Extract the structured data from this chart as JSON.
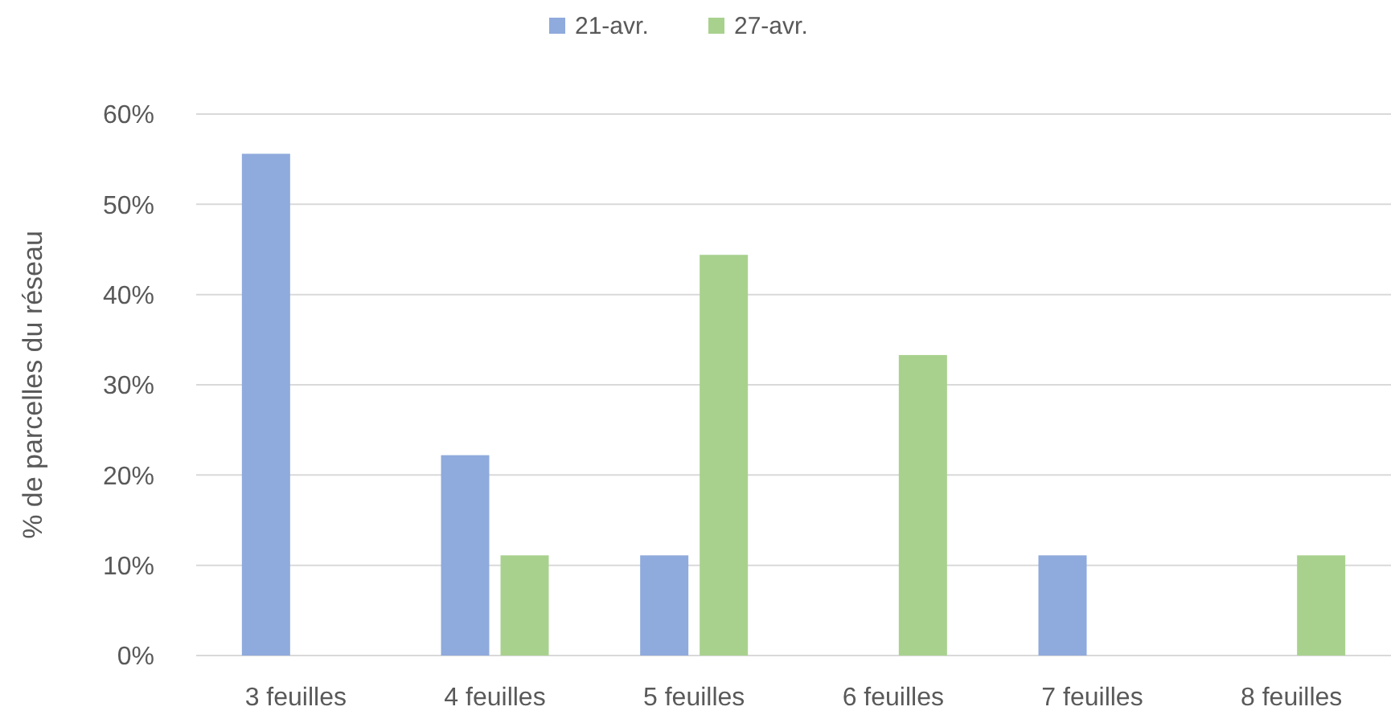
{
  "chart_data": {
    "type": "bar",
    "ylabel": "% de parcelles du réseau",
    "categories": [
      "3 feuilles",
      "4 feuilles",
      "5 feuilles",
      "6 feuilles",
      "7 feuilles",
      "8 feuilles"
    ],
    "series": [
      {
        "name": "21-avr.",
        "color": "#8faadc",
        "values": [
          55.6,
          22.2,
          11.1,
          0,
          11.1,
          0
        ]
      },
      {
        "name": "27-avr.",
        "color": "#a9d18e",
        "values": [
          0,
          11.1,
          44.4,
          33.3,
          0,
          11.1
        ]
      }
    ],
    "ylim": [
      0,
      60
    ],
    "yticks": [
      {
        "value": 0,
        "label": "0%"
      },
      {
        "value": 10,
        "label": "10%"
      },
      {
        "value": 20,
        "label": "20%"
      },
      {
        "value": 30,
        "label": "30%"
      },
      {
        "value": 40,
        "label": "40%"
      },
      {
        "value": 50,
        "label": "50%"
      },
      {
        "value": 60,
        "label": "60%"
      }
    ],
    "grid": "y",
    "legend": "top"
  }
}
